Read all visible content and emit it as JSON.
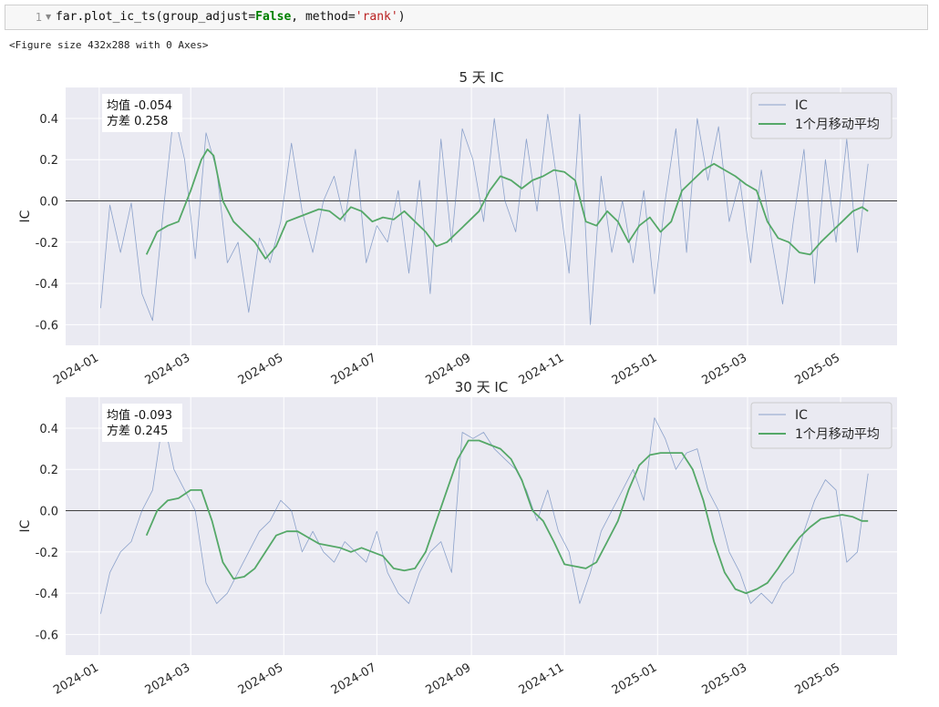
{
  "notebook": {
    "line_number": "1",
    "code": {
      "prefix": "far.plot_ic_ts(group_adjust=",
      "keyword": "False",
      "middle": ", method=",
      "string": "'rank'",
      "suffix": ")"
    },
    "output_text": "<Figure size 432x288 with 0 Axes>"
  },
  "colors": {
    "plot_background": "#eaeaf2",
    "grid": "#ffffff",
    "ic_line": "#4c72b0",
    "moving_average": "#55a868",
    "zero_line": "#000000"
  },
  "chart_data": [
    {
      "type": "line",
      "title": "5 天 IC",
      "xlabel": "",
      "ylabel": "IC",
      "ylim": [
        -0.7,
        0.55
      ],
      "yticks": [
        -0.6,
        -0.4,
        -0.2,
        0.0,
        0.2,
        0.4
      ],
      "ytick_labels": [
        "-0.6",
        "-0.4",
        "-0.2",
        "0.0",
        "0.2",
        "0.4"
      ],
      "xlim": [
        "2023-12-10",
        "2025-06-07"
      ],
      "xtick_labels": [
        "2024-01",
        "2024-03",
        "2024-05",
        "2024-07",
        "2024-09",
        "2024-11",
        "2025-01",
        "2025-03",
        "2025-05"
      ],
      "xtick_dates": [
        "2024-01-01",
        "2024-03-01",
        "2024-05-01",
        "2024-07-01",
        "2024-09-01",
        "2024-11-01",
        "2025-01-01",
        "2025-03-01",
        "2025-05-01"
      ],
      "grid": true,
      "legend": "top-right",
      "stats_box": {
        "mean_label": "均值 -0.054",
        "std_label": "方差 0.258"
      },
      "series": [
        {
          "name": "IC",
          "role": "ic",
          "x": [
            "2024-01-02",
            "2024-01-08",
            "2024-01-15",
            "2024-01-22",
            "2024-01-29",
            "2024-02-05",
            "2024-02-12",
            "2024-02-19",
            "2024-02-26",
            "2024-03-04",
            "2024-03-11",
            "2024-03-18",
            "2024-03-25",
            "2024-04-01",
            "2024-04-08",
            "2024-04-15",
            "2024-04-22",
            "2024-04-29",
            "2024-05-06",
            "2024-05-13",
            "2024-05-20",
            "2024-05-27",
            "2024-06-03",
            "2024-06-10",
            "2024-06-17",
            "2024-06-24",
            "2024-07-01",
            "2024-07-08",
            "2024-07-15",
            "2024-07-22",
            "2024-07-29",
            "2024-08-05",
            "2024-08-12",
            "2024-08-19",
            "2024-08-26",
            "2024-09-02",
            "2024-09-09",
            "2024-09-16",
            "2024-09-23",
            "2024-09-30",
            "2024-10-07",
            "2024-10-14",
            "2024-10-21",
            "2024-10-28",
            "2024-11-04",
            "2024-11-11",
            "2024-11-18",
            "2024-11-25",
            "2024-12-02",
            "2024-12-09",
            "2024-12-16",
            "2024-12-23",
            "2024-12-30",
            "2025-01-06",
            "2025-01-13",
            "2025-01-20",
            "2025-01-27",
            "2025-02-03",
            "2025-02-10",
            "2025-02-17",
            "2025-02-24",
            "2025-03-03",
            "2025-03-10",
            "2025-03-17",
            "2025-03-24",
            "2025-03-31",
            "2025-04-07",
            "2025-04-14",
            "2025-04-21",
            "2025-04-28",
            "2025-05-05",
            "2025-05-12",
            "2025-05-19"
          ],
          "values": [
            -0.52,
            -0.02,
            -0.25,
            -0.01,
            -0.45,
            -0.58,
            -0.05,
            0.43,
            0.2,
            -0.28,
            0.33,
            0.15,
            -0.3,
            -0.2,
            -0.54,
            -0.18,
            -0.3,
            -0.1,
            0.28,
            -0.05,
            -0.25,
            0.0,
            0.12,
            -0.1,
            0.25,
            -0.3,
            -0.12,
            -0.2,
            0.05,
            -0.35,
            0.1,
            -0.45,
            0.3,
            -0.2,
            0.35,
            0.2,
            -0.1,
            0.4,
            0.0,
            -0.15,
            0.3,
            -0.05,
            0.42,
            0.05,
            -0.35,
            0.42,
            -0.6,
            0.12,
            -0.25,
            0.0,
            -0.3,
            0.05,
            -0.45,
            0.0,
            0.35,
            -0.25,
            0.4,
            0.1,
            0.36,
            -0.1,
            0.1,
            -0.3,
            0.15,
            -0.2,
            -0.5,
            -0.1,
            0.25,
            -0.4,
            0.2,
            -0.2,
            0.3,
            -0.25,
            0.18
          ]
        },
        {
          "name": "1个月移动平均",
          "role": "moving_average",
          "x": [
            "2024-02-01",
            "2024-02-08",
            "2024-02-15",
            "2024-02-22",
            "2024-03-01",
            "2024-03-08",
            "2024-03-12",
            "2024-03-16",
            "2024-03-22",
            "2024-03-29",
            "2024-04-05",
            "2024-04-12",
            "2024-04-19",
            "2024-04-26",
            "2024-05-03",
            "2024-05-10",
            "2024-05-17",
            "2024-05-24",
            "2024-05-31",
            "2024-06-07",
            "2024-06-14",
            "2024-06-21",
            "2024-06-28",
            "2024-07-05",
            "2024-07-12",
            "2024-07-19",
            "2024-07-26",
            "2024-08-02",
            "2024-08-09",
            "2024-08-16",
            "2024-08-23",
            "2024-08-30",
            "2024-09-06",
            "2024-09-13",
            "2024-09-20",
            "2024-09-27",
            "2024-10-04",
            "2024-10-11",
            "2024-10-18",
            "2024-10-25",
            "2024-11-01",
            "2024-11-08",
            "2024-11-15",
            "2024-11-22",
            "2024-11-29",
            "2024-12-06",
            "2024-12-13",
            "2024-12-20",
            "2024-12-27",
            "2025-01-03",
            "2025-01-10",
            "2025-01-17",
            "2025-01-24",
            "2025-01-31",
            "2025-02-07",
            "2025-02-14",
            "2025-02-21",
            "2025-02-28",
            "2025-03-07",
            "2025-03-14",
            "2025-03-21",
            "2025-03-28",
            "2025-04-04",
            "2025-04-11",
            "2025-04-18",
            "2025-04-25",
            "2025-05-02",
            "2025-05-09",
            "2025-05-15",
            "2025-05-19"
          ],
          "values": [
            -0.26,
            -0.15,
            -0.12,
            -0.1,
            0.05,
            0.2,
            0.25,
            0.22,
            0.0,
            -0.1,
            -0.15,
            -0.2,
            -0.28,
            -0.22,
            -0.1,
            -0.08,
            -0.06,
            -0.04,
            -0.05,
            -0.09,
            -0.03,
            -0.05,
            -0.1,
            -0.08,
            -0.09,
            -0.05,
            -0.1,
            -0.15,
            -0.22,
            -0.2,
            -0.15,
            -0.1,
            -0.05,
            0.05,
            0.12,
            0.1,
            0.06,
            0.1,
            0.12,
            0.15,
            0.14,
            0.1,
            -0.1,
            -0.12,
            -0.05,
            -0.1,
            -0.2,
            -0.12,
            -0.08,
            -0.15,
            -0.1,
            0.05,
            0.1,
            0.15,
            0.18,
            0.15,
            0.12,
            0.08,
            0.05,
            -0.1,
            -0.18,
            -0.2,
            -0.25,
            -0.26,
            -0.2,
            -0.15,
            -0.1,
            -0.05,
            -0.03,
            -0.05
          ]
        }
      ]
    },
    {
      "type": "line",
      "title": "30 天 IC",
      "xlabel": "",
      "ylabel": "IC",
      "ylim": [
        -0.7,
        0.55
      ],
      "yticks": [
        -0.6,
        -0.4,
        -0.2,
        0.0,
        0.2,
        0.4
      ],
      "ytick_labels": [
        "-0.6",
        "-0.4",
        "-0.2",
        "0.0",
        "0.2",
        "0.4"
      ],
      "xlim": [
        "2023-12-10",
        "2025-06-07"
      ],
      "xtick_labels": [
        "2024-01",
        "2024-03",
        "2024-05",
        "2024-07",
        "2024-09",
        "2024-11",
        "2025-01",
        "2025-03",
        "2025-05"
      ],
      "xtick_dates": [
        "2024-01-01",
        "2024-03-01",
        "2024-05-01",
        "2024-07-01",
        "2024-09-01",
        "2024-11-01",
        "2025-01-01",
        "2025-03-01",
        "2025-05-01"
      ],
      "grid": true,
      "legend": "top-right",
      "stats_box": {
        "mean_label": "均值 -0.093",
        "std_label": "方差 0.245"
      },
      "series": [
        {
          "name": "IC",
          "role": "ic",
          "x": [
            "2024-01-02",
            "2024-01-08",
            "2024-01-15",
            "2024-01-22",
            "2024-01-29",
            "2024-02-05",
            "2024-02-12",
            "2024-02-19",
            "2024-02-26",
            "2024-03-04",
            "2024-03-11",
            "2024-03-18",
            "2024-03-25",
            "2024-04-01",
            "2024-04-08",
            "2024-04-15",
            "2024-04-22",
            "2024-04-29",
            "2024-05-06",
            "2024-05-13",
            "2024-05-20",
            "2024-05-27",
            "2024-06-03",
            "2024-06-10",
            "2024-06-17",
            "2024-06-24",
            "2024-07-01",
            "2024-07-08",
            "2024-07-15",
            "2024-07-22",
            "2024-07-29",
            "2024-08-05",
            "2024-08-12",
            "2024-08-19",
            "2024-08-26",
            "2024-09-02",
            "2024-09-09",
            "2024-09-16",
            "2024-09-23",
            "2024-09-30",
            "2024-10-07",
            "2024-10-14",
            "2024-10-21",
            "2024-10-28",
            "2024-11-04",
            "2024-11-11",
            "2024-11-18",
            "2024-11-25",
            "2024-12-02",
            "2024-12-09",
            "2024-12-16",
            "2024-12-23",
            "2024-12-30",
            "2025-01-06",
            "2025-01-13",
            "2025-01-20",
            "2025-01-27",
            "2025-02-03",
            "2025-02-10",
            "2025-02-17",
            "2025-02-24",
            "2025-03-03",
            "2025-03-10",
            "2025-03-17",
            "2025-03-24",
            "2025-03-31",
            "2025-04-07",
            "2025-04-14",
            "2025-04-21",
            "2025-04-28",
            "2025-05-05",
            "2025-05-12",
            "2025-05-19"
          ],
          "values": [
            -0.5,
            -0.3,
            -0.2,
            -0.15,
            0.0,
            0.1,
            0.45,
            0.2,
            0.1,
            0.0,
            -0.35,
            -0.45,
            -0.4,
            -0.3,
            -0.2,
            -0.1,
            -0.05,
            0.05,
            0.0,
            -0.2,
            -0.1,
            -0.2,
            -0.25,
            -0.15,
            -0.2,
            -0.25,
            -0.1,
            -0.3,
            -0.4,
            -0.45,
            -0.3,
            -0.2,
            -0.15,
            -0.3,
            0.38,
            0.35,
            0.38,
            0.3,
            0.25,
            0.2,
            0.1,
            -0.05,
            0.1,
            -0.1,
            -0.2,
            -0.45,
            -0.3,
            -0.1,
            0.0,
            0.1,
            0.2,
            0.05,
            0.45,
            0.35,
            0.2,
            0.28,
            0.3,
            0.1,
            0.0,
            -0.2,
            -0.3,
            -0.45,
            -0.4,
            -0.45,
            -0.35,
            -0.3,
            -0.1,
            0.05,
            0.15,
            0.1,
            -0.25,
            -0.2,
            0.18
          ]
        },
        {
          "name": "1个月移动平均",
          "role": "moving_average",
          "x": [
            "2024-02-01",
            "2024-02-08",
            "2024-02-15",
            "2024-02-22",
            "2024-03-01",
            "2024-03-08",
            "2024-03-15",
            "2024-03-22",
            "2024-03-29",
            "2024-04-05",
            "2024-04-12",
            "2024-04-19",
            "2024-04-26",
            "2024-05-03",
            "2024-05-10",
            "2024-05-17",
            "2024-05-24",
            "2024-05-31",
            "2024-06-07",
            "2024-06-14",
            "2024-06-21",
            "2024-06-28",
            "2024-07-05",
            "2024-07-12",
            "2024-07-19",
            "2024-07-26",
            "2024-08-02",
            "2024-08-09",
            "2024-08-16",
            "2024-08-23",
            "2024-08-30",
            "2024-09-06",
            "2024-09-13",
            "2024-09-20",
            "2024-09-27",
            "2024-10-04",
            "2024-10-11",
            "2024-10-18",
            "2024-10-25",
            "2024-11-01",
            "2024-11-08",
            "2024-11-15",
            "2024-11-22",
            "2024-11-29",
            "2024-12-06",
            "2024-12-13",
            "2024-12-20",
            "2024-12-27",
            "2025-01-03",
            "2025-01-10",
            "2025-01-17",
            "2025-01-24",
            "2025-01-31",
            "2025-02-07",
            "2025-02-14",
            "2025-02-21",
            "2025-02-28",
            "2025-03-07",
            "2025-03-14",
            "2025-03-21",
            "2025-03-28",
            "2025-04-04",
            "2025-04-11",
            "2025-04-18",
            "2025-04-25",
            "2025-05-02",
            "2025-05-09",
            "2025-05-15",
            "2025-05-19"
          ],
          "values": [
            -0.12,
            0.0,
            0.05,
            0.06,
            0.1,
            0.1,
            -0.05,
            -0.25,
            -0.33,
            -0.32,
            -0.28,
            -0.2,
            -0.12,
            -0.1,
            -0.1,
            -0.13,
            -0.16,
            -0.17,
            -0.18,
            -0.2,
            -0.18,
            -0.2,
            -0.22,
            -0.28,
            -0.29,
            -0.28,
            -0.2,
            -0.05,
            0.1,
            0.25,
            0.34,
            0.34,
            0.32,
            0.3,
            0.25,
            0.15,
            0.0,
            -0.05,
            -0.15,
            -0.26,
            -0.27,
            -0.28,
            -0.25,
            -0.15,
            -0.05,
            0.1,
            0.22,
            0.27,
            0.28,
            0.28,
            0.28,
            0.2,
            0.05,
            -0.15,
            -0.3,
            -0.38,
            -0.4,
            -0.38,
            -0.35,
            -0.28,
            -0.2,
            -0.13,
            -0.08,
            -0.04,
            -0.03,
            -0.02,
            -0.03,
            -0.05,
            -0.05
          ]
        }
      ]
    }
  ]
}
